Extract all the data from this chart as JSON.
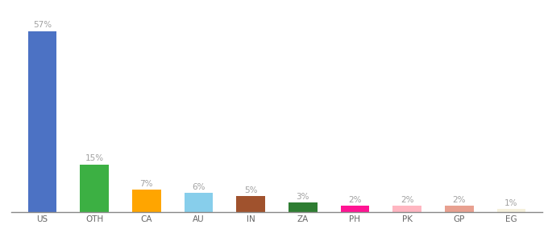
{
  "categories": [
    "US",
    "OTH",
    "CA",
    "AU",
    "IN",
    "ZA",
    "PH",
    "PK",
    "GP",
    "EG"
  ],
  "values": [
    57,
    15,
    7,
    6,
    5,
    3,
    2,
    2,
    2,
    1
  ],
  "labels": [
    "57%",
    "15%",
    "7%",
    "6%",
    "5%",
    "3%",
    "2%",
    "2%",
    "2%",
    "1%"
  ],
  "bar_colors": [
    "#4C72C4",
    "#3CB043",
    "#FFA500",
    "#87CEEB",
    "#A0522D",
    "#2E7D32",
    "#FF1493",
    "#FFB6C1",
    "#E8A090",
    "#F5F0DC"
  ],
  "background_color": "#ffffff",
  "label_color": "#a0a0a0",
  "label_fontsize": 7.5,
  "tick_fontsize": 7.5,
  "ylim": [
    0,
    63
  ],
  "bar_width": 0.55
}
